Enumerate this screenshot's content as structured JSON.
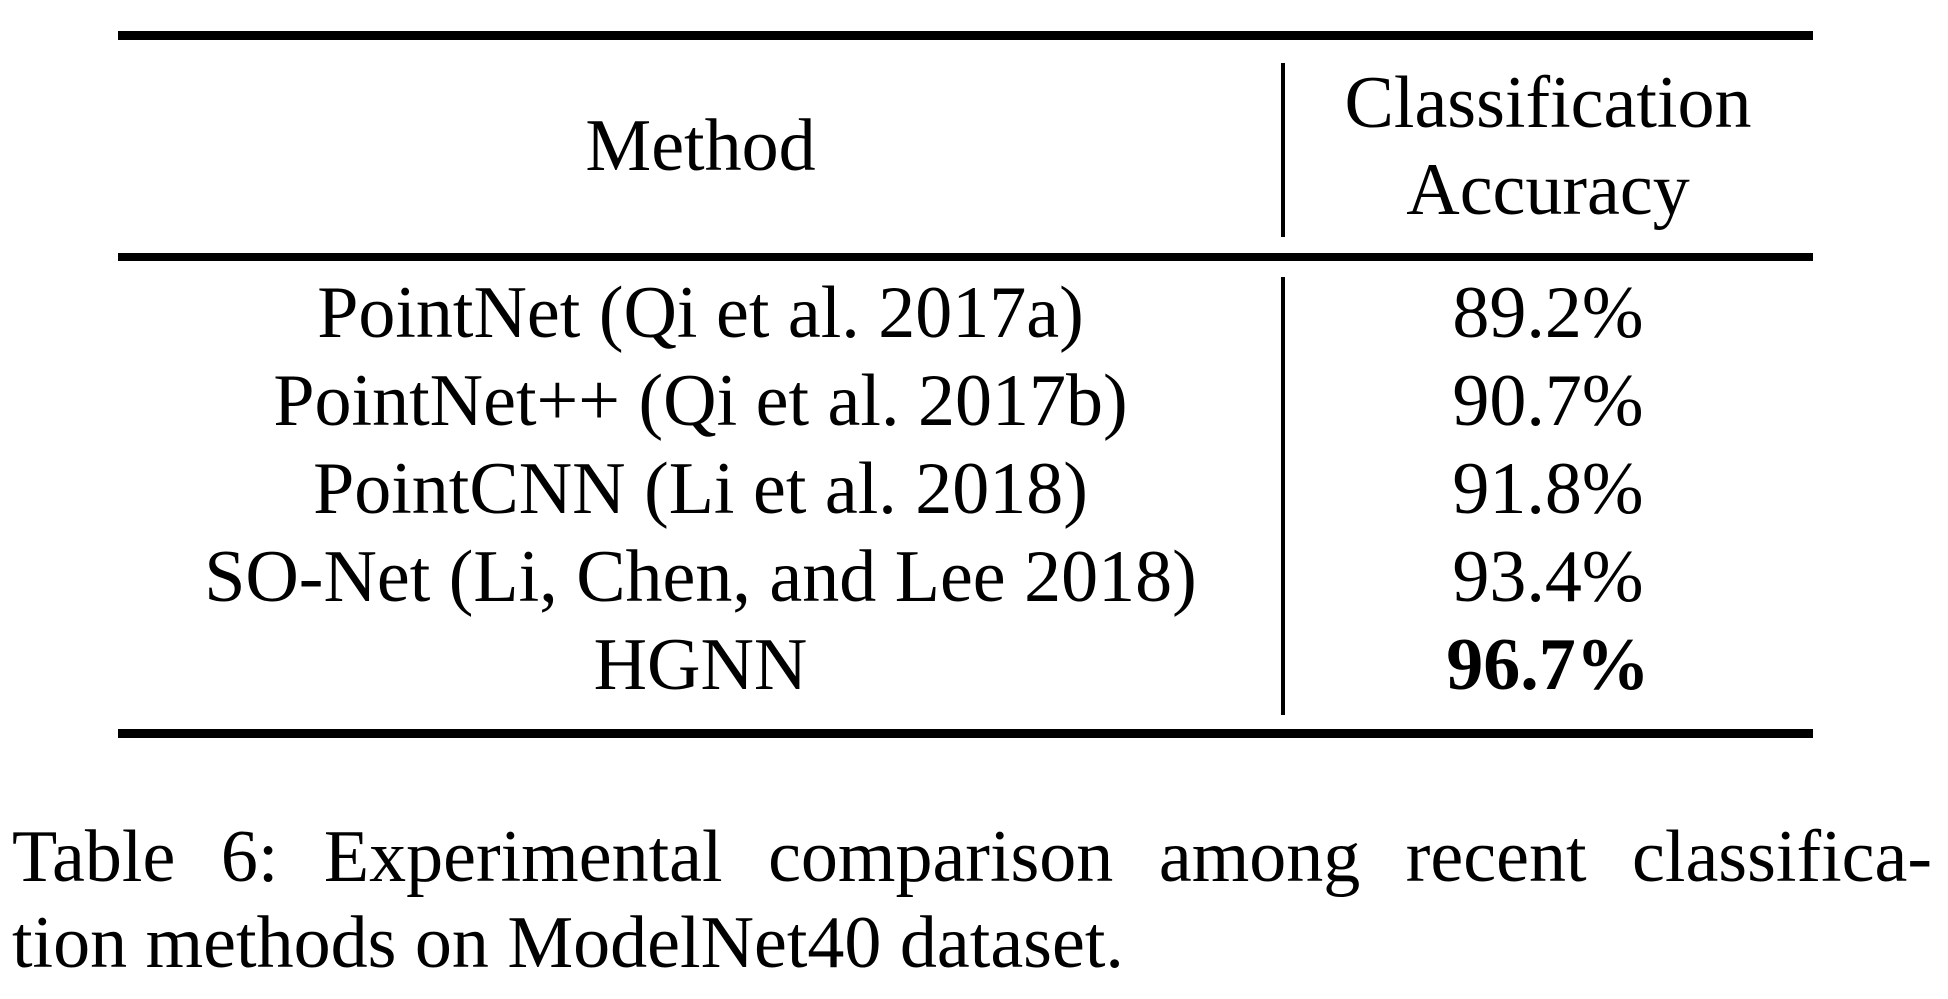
{
  "table": {
    "header": {
      "method": "Method",
      "accuracy_line1": "Classification",
      "accuracy_line2": "Accuracy"
    },
    "rows": [
      {
        "method": "PointNet (Qi et al. 2017a)",
        "accuracy": "89.2%"
      },
      {
        "method": "PointNet++ (Qi et al. 2017b)",
        "accuracy": "90.7%"
      },
      {
        "method": "PointCNN (Li et al. 2018)",
        "accuracy": "91.8%"
      },
      {
        "method": "SO-Net (Li, Chen, and Lee 2018)",
        "accuracy": "93.4%"
      },
      {
        "method": "HGNN",
        "accuracy": "96.7%"
      }
    ],
    "best_row_index": 4,
    "best_value_bold": true
  },
  "caption": {
    "label": "Table 6",
    "line1": "Table 6: Experimental comparison among recent classifica-",
    "line2": "tion methods on ModelNet40 dataset.",
    "full_text": "Table 6: Experimental comparison among recent classification methods on ModelNet40 dataset."
  },
  "colors": {
    "text": "#000000",
    "background": "#ffffff",
    "rule": "#000000"
  }
}
